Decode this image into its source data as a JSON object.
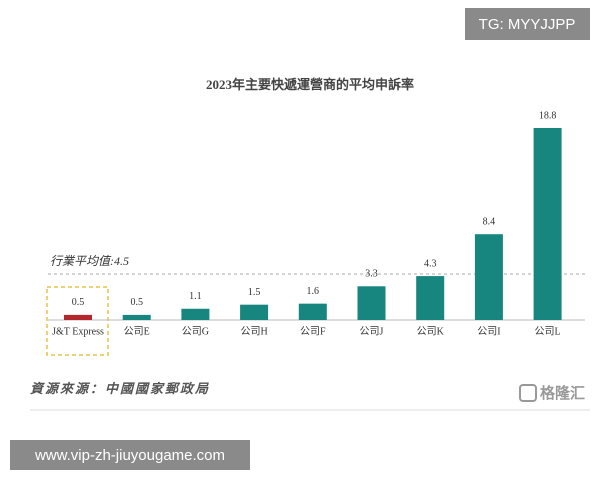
{
  "watermark": "TG: MYYJJPP",
  "chart_data": {
    "type": "bar",
    "title": "2023年主要快遞運營商的平均申訴率",
    "categories": [
      "J&T Express",
      "公司E",
      "公司G",
      "公司H",
      "公司F",
      "公司J",
      "公司K",
      "公司I",
      "公司L"
    ],
    "values": [
      0.5,
      0.5,
      1.1,
      1.5,
      1.6,
      3.3,
      4.3,
      8.4,
      18.8
    ],
    "colors": [
      "#b3272d",
      "#16867f",
      "#16867f",
      "#16867f",
      "#16867f",
      "#16867f",
      "#16867f",
      "#16867f",
      "#16867f"
    ],
    "average_label": "行業平均值:",
    "average": 4.5,
    "source": "資源來源：中國國家郵政局"
  },
  "logo": "格隆汇",
  "footer_url": "www.vip-zh-jiuyougame.com"
}
